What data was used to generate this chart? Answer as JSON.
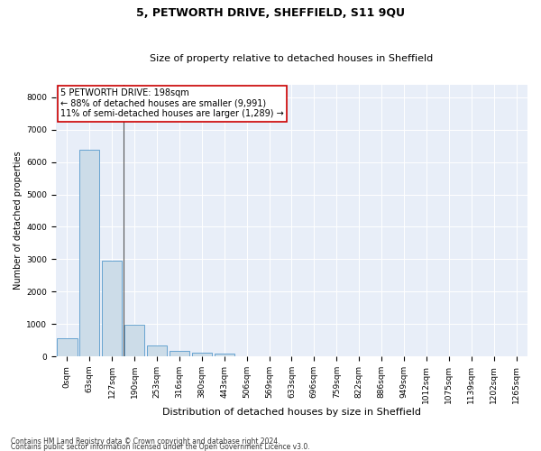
{
  "title": "5, PETWORTH DRIVE, SHEFFIELD, S11 9QU",
  "subtitle": "Size of property relative to detached houses in Sheffield",
  "xlabel": "Distribution of detached houses by size in Sheffield",
  "ylabel": "Number of detached properties",
  "footnote1": "Contains HM Land Registry data © Crown copyright and database right 2024.",
  "footnote2": "Contains public sector information licensed under the Open Government Licence v3.0.",
  "annotation_line1": "5 PETWORTH DRIVE: 198sqm",
  "annotation_line2": "← 88% of detached houses are smaller (9,991)",
  "annotation_line3": "11% of semi-detached houses are larger (1,289) →",
  "bar_color": "#ccdce8",
  "bar_edge_color": "#5599cc",
  "bg_color": "#e8eef8",
  "grid_color": "#ffffff",
  "vline_color": "#555555",
  "annotation_box_edge": "#cc0000",
  "annotation_box_face": "#ffffff",
  "categories": [
    "0sqm",
    "63sqm",
    "127sqm",
    "190sqm",
    "253sqm",
    "316sqm",
    "380sqm",
    "443sqm",
    "506sqm",
    "569sqm",
    "633sqm",
    "696sqm",
    "759sqm",
    "822sqm",
    "886sqm",
    "949sqm",
    "1012sqm",
    "1075sqm",
    "1139sqm",
    "1202sqm",
    "1265sqm"
  ],
  "values": [
    550,
    6380,
    2950,
    980,
    350,
    165,
    120,
    80,
    0,
    0,
    0,
    0,
    0,
    0,
    0,
    0,
    0,
    0,
    0,
    0,
    0
  ],
  "ylim": [
    0,
    8400
  ],
  "yticks": [
    0,
    1000,
    2000,
    3000,
    4000,
    5000,
    6000,
    7000,
    8000
  ],
  "vline_x": 2.5,
  "title_fontsize": 9,
  "subtitle_fontsize": 8,
  "xlabel_fontsize": 8,
  "ylabel_fontsize": 7,
  "tick_fontsize": 6.5,
  "annotation_fontsize": 7,
  "footnote_fontsize": 5.5
}
